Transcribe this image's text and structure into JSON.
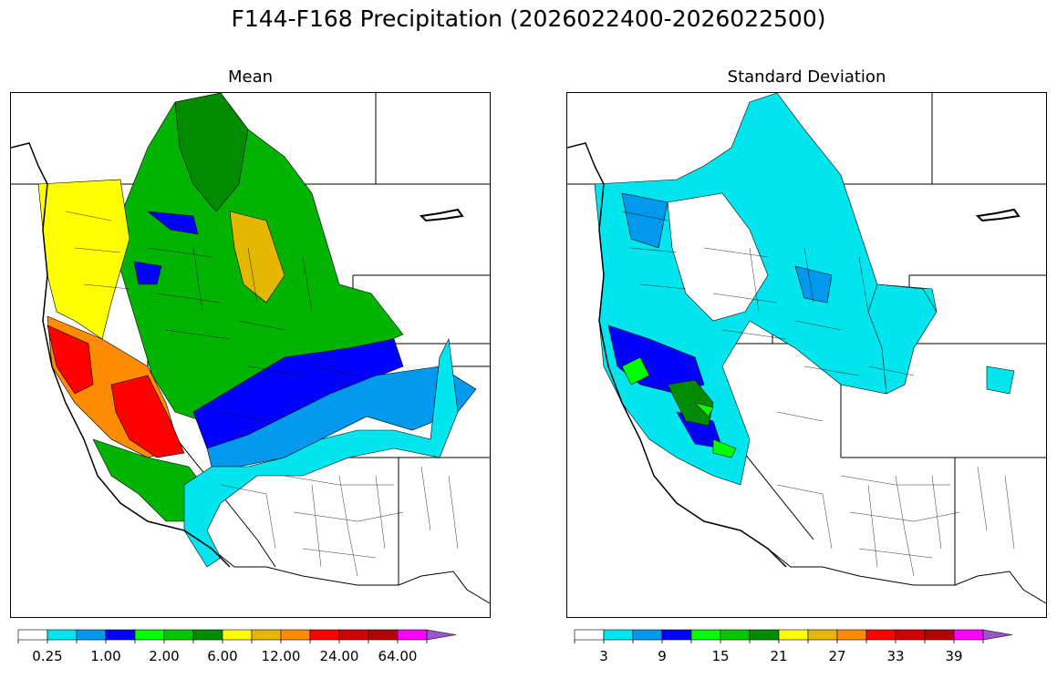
{
  "figure": {
    "title": "F144-F168 Precipitation (2026022400-2026022500)"
  },
  "panels": [
    {
      "id": "mean",
      "title": "Mean",
      "colorbar": {
        "colors": [
          "#ffffff",
          "#00e5ee",
          "#0099ee",
          "#0000ff",
          "#00ff00",
          "#00c800",
          "#008b00",
          "#ffff00",
          "#e5b800",
          "#ff8c00",
          "#ff0000",
          "#d20000",
          "#b40000",
          "#ff00ff",
          "#9955cc"
        ],
        "tick_labels": [
          "0.25",
          "1.00",
          "2.00",
          "6.00",
          "12.00",
          "24.00",
          "64.00"
        ],
        "tick_boundary_index": [
          1,
          3,
          5,
          7,
          9,
          11,
          13
        ],
        "extend": "max"
      }
    },
    {
      "id": "stddev",
      "title": "Standard Deviation",
      "colorbar": {
        "colors": [
          "#ffffff",
          "#00e5ee",
          "#0099ee",
          "#0000ff",
          "#00ff00",
          "#00c800",
          "#008b00",
          "#ffff00",
          "#e5b800",
          "#ff8c00",
          "#ff0000",
          "#d20000",
          "#b40000",
          "#ff00ff",
          "#9955cc"
        ],
        "tick_labels": [
          "3",
          "9",
          "15",
          "21",
          "27",
          "33",
          "39"
        ],
        "tick_boundary_index": [
          1,
          3,
          5,
          7,
          9,
          11,
          13
        ],
        "extend": "max"
      }
    }
  ]
}
